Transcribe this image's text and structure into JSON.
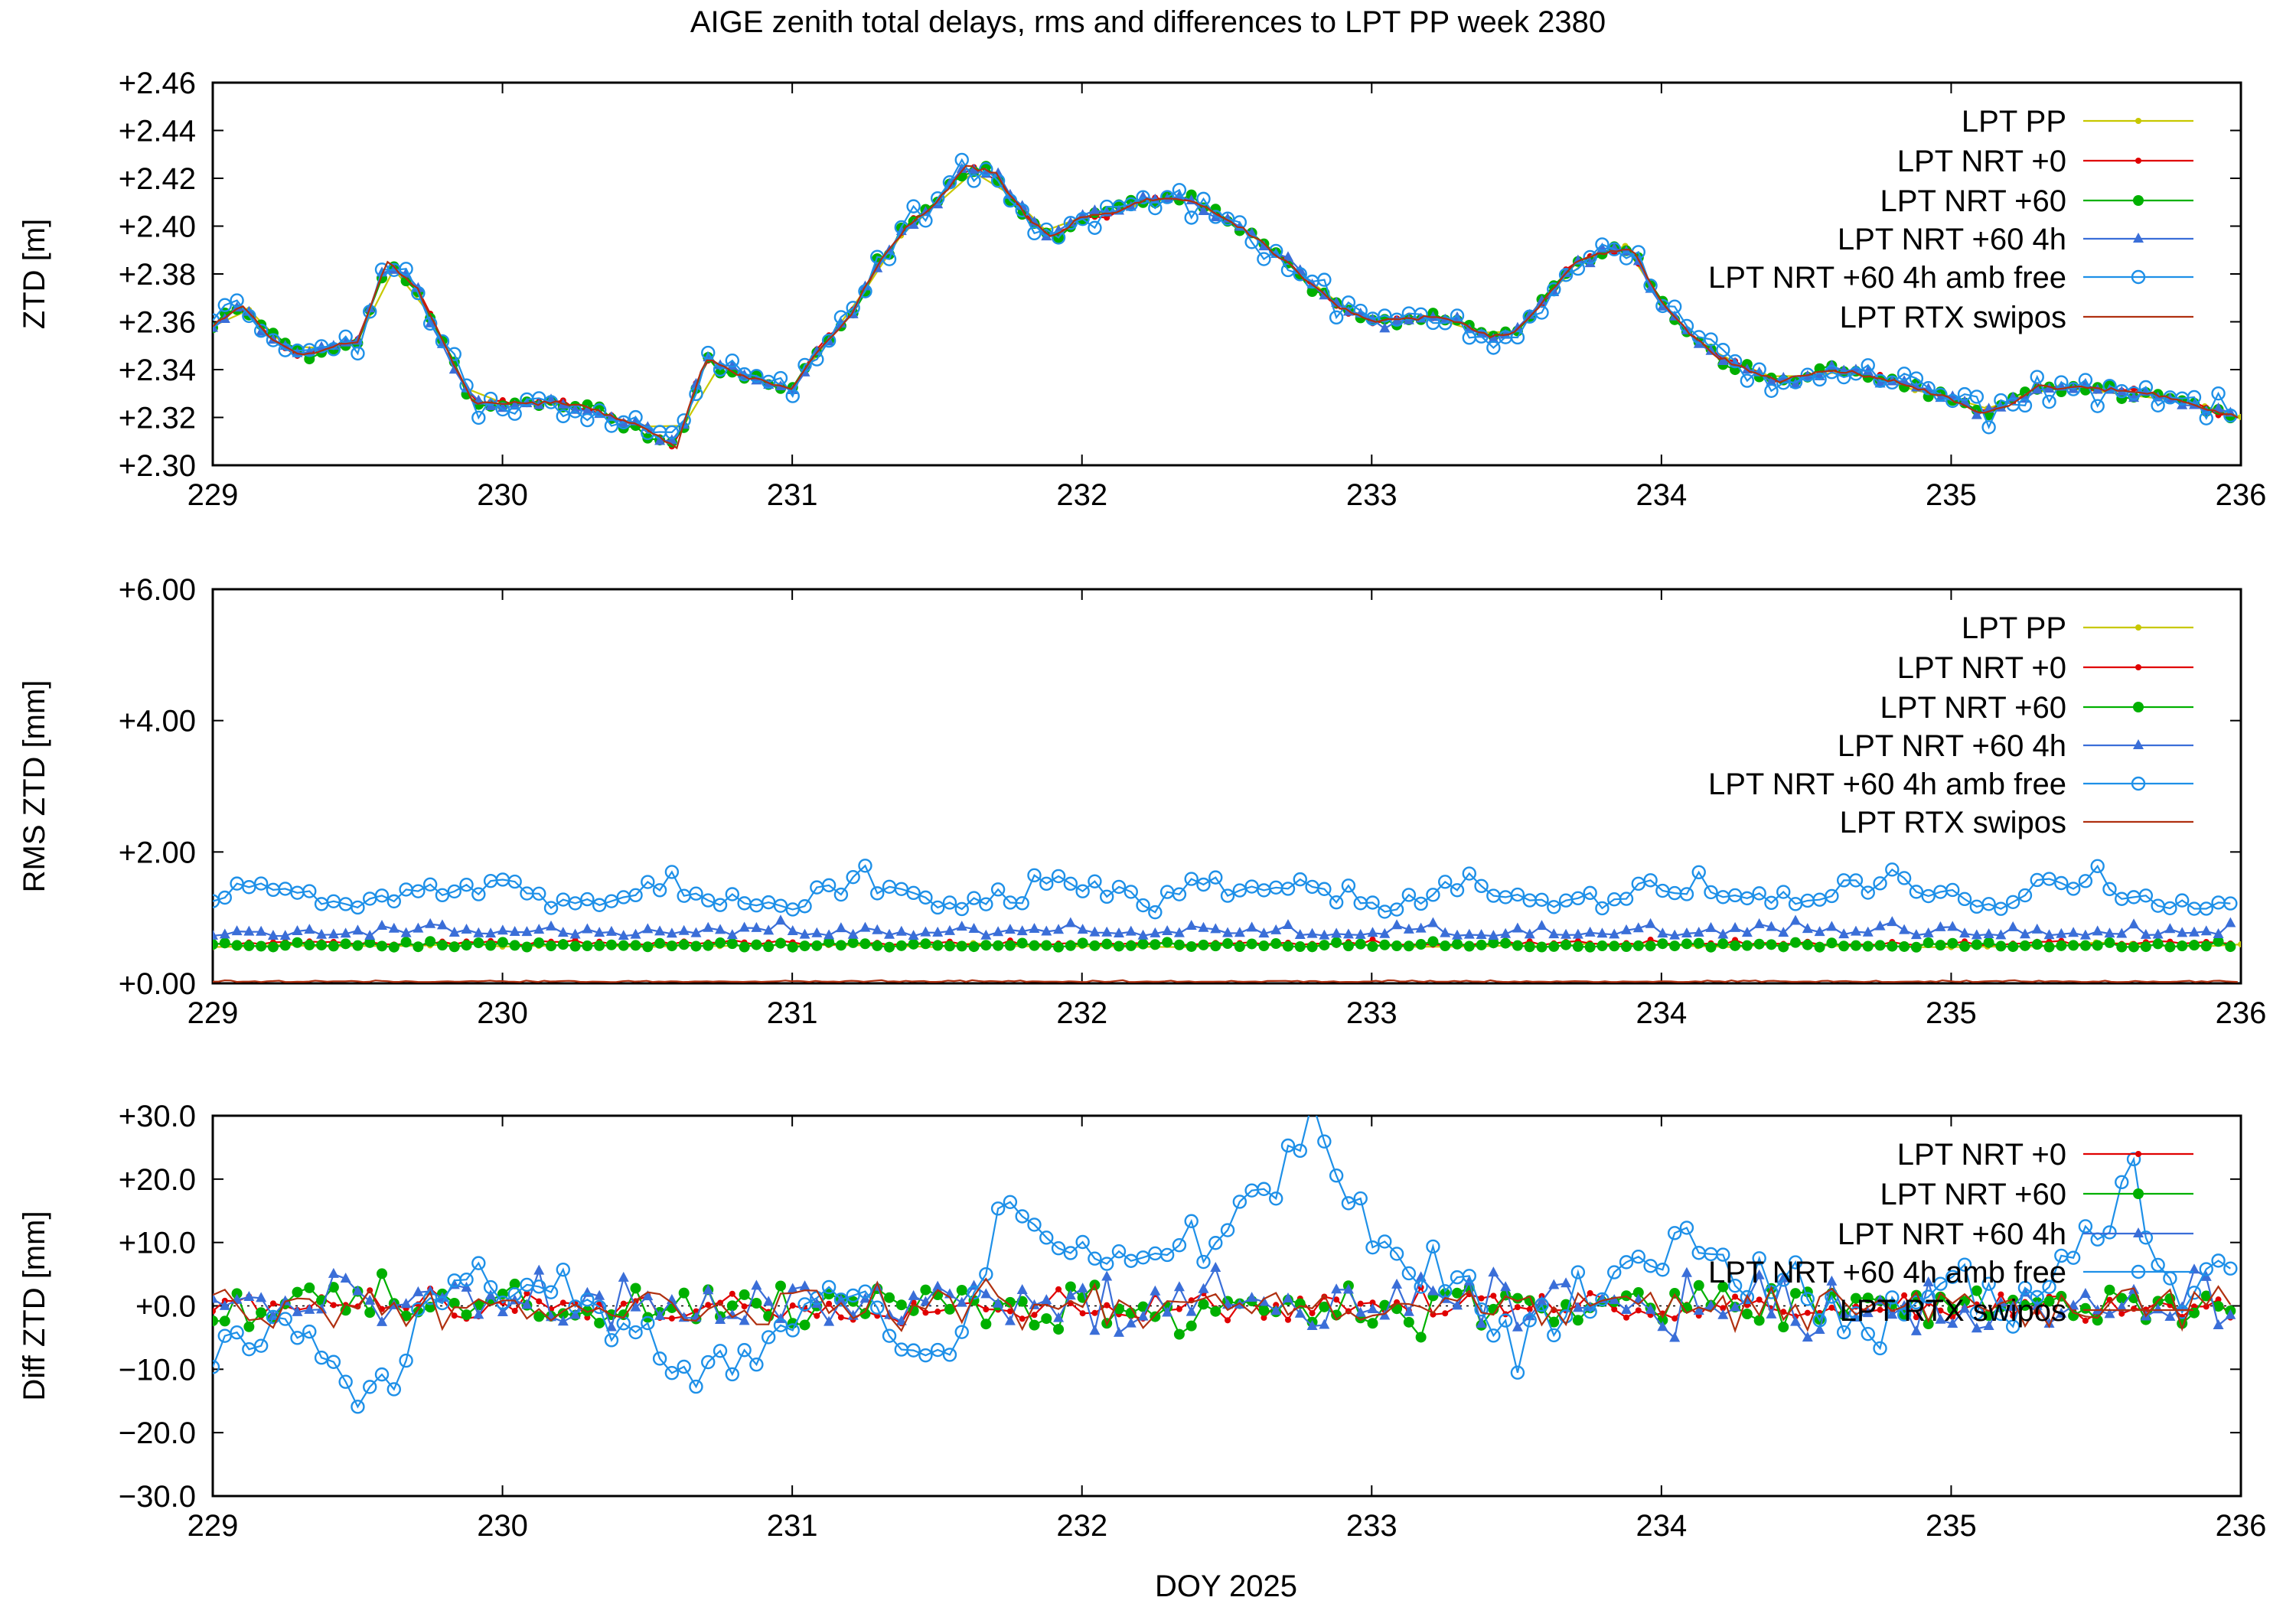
{
  "figure": {
    "title": "AIGE zenith total delays, rms and differences to LPT PP week 2380",
    "xlabel": "DOY 2025"
  },
  "colors": {
    "lpt_pp": "#c8c800",
    "lpt_nrt_0": "#e00000",
    "lpt_nrt_60": "#00b000",
    "lpt_nrt_60_4h": "#3a6ed8",
    "lpt_nrt_60_4h_amb_free": "#1e90e8",
    "lpt_rtx_swipos": "#b03010"
  },
  "chart_data": [
    {
      "type": "line",
      "ylabel": "ZTD [m]",
      "xlim": [
        229,
        236
      ],
      "ylim": [
        2.3,
        2.46
      ],
      "xticks": [
        "229",
        "230",
        "231",
        "232",
        "233",
        "234",
        "235",
        "236"
      ],
      "yticks": [
        "+2.30",
        "+2.32",
        "+2.34",
        "+2.36",
        "+2.38",
        "+2.40",
        "+2.42",
        "+2.44",
        "+2.46"
      ],
      "ytick_values": [
        2.3,
        2.32,
        2.34,
        2.36,
        2.38,
        2.4,
        2.42,
        2.44,
        2.46
      ],
      "legend_position": "top-right",
      "anchors_x": [
        229.0,
        229.1,
        229.2,
        229.3,
        229.5,
        229.6,
        229.7,
        229.8,
        229.9,
        230.0,
        230.2,
        230.3,
        230.5,
        230.6,
        230.7,
        230.8,
        230.9,
        231.0,
        231.1,
        231.2,
        231.3,
        231.4,
        231.5,
        231.6,
        231.7,
        231.8,
        231.9,
        232.0,
        232.1,
        232.2,
        232.3,
        232.4,
        232.6,
        232.7,
        232.8,
        232.9,
        233.0,
        233.2,
        233.3,
        233.4,
        233.5,
        233.6,
        233.7,
        233.8,
        233.9,
        234.0,
        234.1,
        234.2,
        234.4,
        234.6,
        234.8,
        235.0,
        235.1,
        235.2,
        235.3,
        235.5,
        235.7,
        236.0
      ],
      "anchors_y": [
        2.358,
        2.367,
        2.353,
        2.346,
        2.352,
        2.385,
        2.375,
        2.35,
        2.326,
        2.326,
        2.326,
        2.324,
        2.315,
        2.307,
        2.345,
        2.338,
        2.335,
        2.332,
        2.35,
        2.362,
        2.385,
        2.4,
        2.41,
        2.425,
        2.422,
        2.405,
        2.395,
        2.404,
        2.405,
        2.41,
        2.412,
        2.41,
        2.395,
        2.385,
        2.375,
        2.365,
        2.36,
        2.362,
        2.36,
        2.354,
        2.356,
        2.37,
        2.385,
        2.389,
        2.39,
        2.368,
        2.355,
        2.345,
        2.335,
        2.34,
        2.335,
        2.328,
        2.322,
        2.325,
        2.333,
        2.332,
        2.33,
        2.32
      ],
      "series": [
        {
          "name": "LPT PP",
          "key": "lpt_pp",
          "marker": "dot-small",
          "step": 0.125,
          "noise": 0.0015,
          "line": true
        },
        {
          "name": "LPT NRT +0",
          "key": "lpt_nrt_0",
          "marker": "dot-small",
          "step": 0.0417,
          "noise": 0.0012,
          "line": true
        },
        {
          "name": "LPT NRT +60",
          "key": "lpt_nrt_60",
          "marker": "dot-large",
          "step": 0.0417,
          "noise": 0.0022,
          "line": true
        },
        {
          "name": "LPT NRT +60 4h",
          "key": "lpt_nrt_60_4h",
          "marker": "triangle",
          "step": 0.0417,
          "noise": 0.0022,
          "line": true
        },
        {
          "name": "LPT NRT +60 4h amb free",
          "key": "lpt_nrt_60_4h_amb_free",
          "marker": "circle-open",
          "step": 0.0417,
          "noise": 0.005,
          "line": true
        },
        {
          "name": "LPT RTX swipos",
          "key": "lpt_rtx_swipos",
          "marker": "none",
          "step": 0.0208,
          "noise": 0.0008,
          "line": true
        }
      ]
    },
    {
      "type": "line",
      "ylabel": "RMS ZTD [mm]",
      "xlim": [
        229,
        236
      ],
      "ylim": [
        0,
        6
      ],
      "xticks": [
        "229",
        "230",
        "231",
        "232",
        "233",
        "234",
        "235",
        "236"
      ],
      "yticks": [
        "+0.00",
        "+2.00",
        "+4.00",
        "+6.00"
      ],
      "ytick_values": [
        0,
        2,
        4,
        6
      ],
      "legend_position": "top-right",
      "series": [
        {
          "name": "LPT PP",
          "key": "lpt_pp",
          "marker": "dot-small",
          "step": 0.125,
          "base": 0.55,
          "noise": 0.05,
          "line": true
        },
        {
          "name": "LPT NRT +0",
          "key": "lpt_nrt_0",
          "marker": "dot-small",
          "step": 0.0417,
          "base": 0.58,
          "noise": 0.06,
          "line": true
        },
        {
          "name": "LPT NRT +60",
          "key": "lpt_nrt_60",
          "marker": "dot-large",
          "step": 0.0417,
          "base": 0.55,
          "noise": 0.06,
          "line": true
        },
        {
          "name": "LPT NRT +60 4h",
          "key": "lpt_nrt_60_4h",
          "marker": "triangle",
          "step": 0.0417,
          "base": 0.72,
          "noise": 0.16,
          "line": true
        },
        {
          "name": "LPT NRT +60 4h amb free",
          "key": "lpt_nrt_60_4h_amb_free",
          "marker": "circle-open",
          "step": 0.0417,
          "base": 1.2,
          "noise": 0.35,
          "line": true
        },
        {
          "name": "LPT RTX swipos",
          "key": "lpt_rtx_swipos",
          "marker": "none",
          "step": 0.0208,
          "base": 0.02,
          "noise": 0.02,
          "line": true
        }
      ]
    },
    {
      "type": "line",
      "ylabel": "Diff ZTD [mm]",
      "xlim": [
        229,
        236
      ],
      "ylim": [
        -30,
        30
      ],
      "xticks": [
        "229",
        "230",
        "231",
        "232",
        "233",
        "234",
        "235",
        "236"
      ],
      "yticks": [
        "−30.0",
        "−20.0",
        "−10.0",
        "+0.0",
        "+10.0",
        "+20.0",
        "+30.0"
      ],
      "ytick_values": [
        -30,
        -20,
        -10,
        0,
        10,
        20,
        30
      ],
      "zero_line": true,
      "legend_position": "top-right",
      "series": [
        {
          "name": "LPT NRT +0",
          "key": "lpt_nrt_0",
          "marker": "dot-small",
          "step": 0.0417,
          "noise": 2.0,
          "line": true
        },
        {
          "name": "LPT NRT +60",
          "key": "lpt_nrt_60",
          "marker": "dot-large",
          "step": 0.0417,
          "noise": 3.5,
          "line": true
        },
        {
          "name": "LPT NRT +60 4h",
          "key": "lpt_nrt_60_4h",
          "marker": "triangle",
          "step": 0.0417,
          "noise": 4.0,
          "line": true
        },
        {
          "name": "LPT NRT +60 4h amb free",
          "key": "lpt_nrt_60_4h_amb_free",
          "marker": "circle-open",
          "step": 0.0417,
          "noise": 6.5,
          "line": true
        },
        {
          "name": "LPT RTX swipos",
          "key": "lpt_rtx_swipos",
          "marker": "none",
          "step": 0.0417,
          "noise": 3.0,
          "line": true
        }
      ],
      "amb_free_anchors_x": [
        229.0,
        229.3,
        229.55,
        229.8,
        230.0,
        230.3,
        230.6,
        230.85,
        231.1,
        231.3,
        231.5,
        231.65,
        231.75,
        231.95,
        232.2,
        232.5,
        232.7,
        232.78,
        232.9,
        233.1,
        233.3,
        233.5,
        233.7,
        233.9,
        234.1,
        234.4,
        234.7,
        235.0,
        235.2,
        235.5,
        235.6,
        235.8,
        236.0
      ],
      "amb_free_anchors_y": [
        -5,
        -5,
        -15,
        5,
        2,
        0,
        -10,
        -10,
        3,
        -2,
        -10,
        5,
        15,
        10,
        6,
        12,
        22,
        30,
        20,
        6,
        4,
        -8,
        0,
        5,
        10,
        5,
        -3,
        5,
        -2,
        10,
        22,
        0,
        12
      ]
    }
  ]
}
